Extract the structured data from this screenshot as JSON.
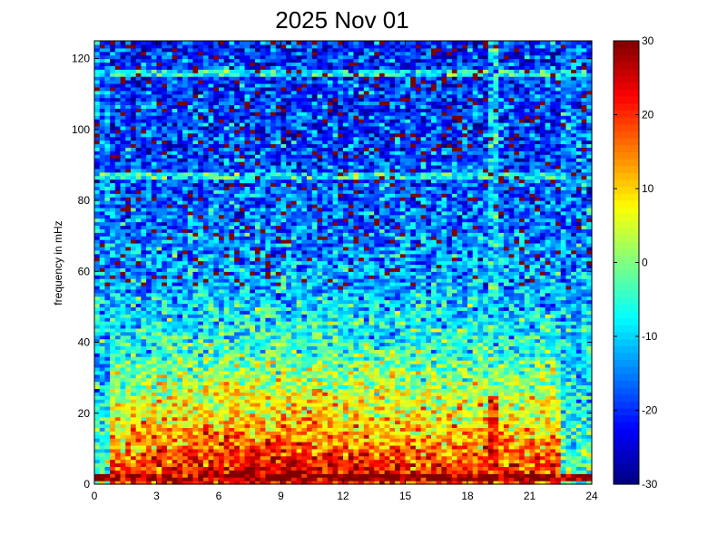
{
  "chart_data": {
    "type": "heatmap",
    "title": "2025 Nov 01",
    "xlabel": "",
    "ylabel": "frequency in mHz",
    "xlim": [
      0,
      24
    ],
    "ylim": [
      0,
      125
    ],
    "x_ticks": [
      0,
      3,
      6,
      9,
      12,
      15,
      18,
      21,
      24
    ],
    "x_tick_labels": [
      "0",
      "3",
      "6",
      "9",
      "12",
      "15",
      "18",
      "21",
      "24"
    ],
    "y_ticks": [
      0,
      20,
      40,
      60,
      80,
      100,
      120
    ],
    "y_tick_labels": [
      "0",
      "20",
      "40",
      "60",
      "80",
      "100",
      "120"
    ],
    "colormap": "jet",
    "clim": [
      -30,
      30
    ],
    "colorbar_ticks": [
      -30,
      -20,
      -10,
      0,
      10,
      20,
      30
    ],
    "colorbar_tick_labels": [
      "-30",
      "-20",
      "-10",
      "0",
      "10",
      "20",
      "30"
    ],
    "resolution": {
      "time_bins": 96,
      "freq_bins": 125
    },
    "profile_note_values": {
      "freq_mHz": [
        0,
        2,
        5,
        10,
        20,
        30,
        40,
        50,
        60,
        80,
        100,
        120,
        125
      ],
      "typical_value": [
        15,
        22,
        20,
        14,
        6,
        0,
        -6,
        -10,
        -13,
        -17,
        -19,
        -20,
        -20
      ]
    },
    "features": {
      "vertical_band_hours": [
        19.0,
        19.4
      ],
      "low_activity_edges_hours": [
        [
          0,
          0.8
        ],
        [
          22.6,
          24
        ]
      ],
      "horizontal_line_freqs_mHz": [
        2,
        87,
        116
      ]
    }
  }
}
